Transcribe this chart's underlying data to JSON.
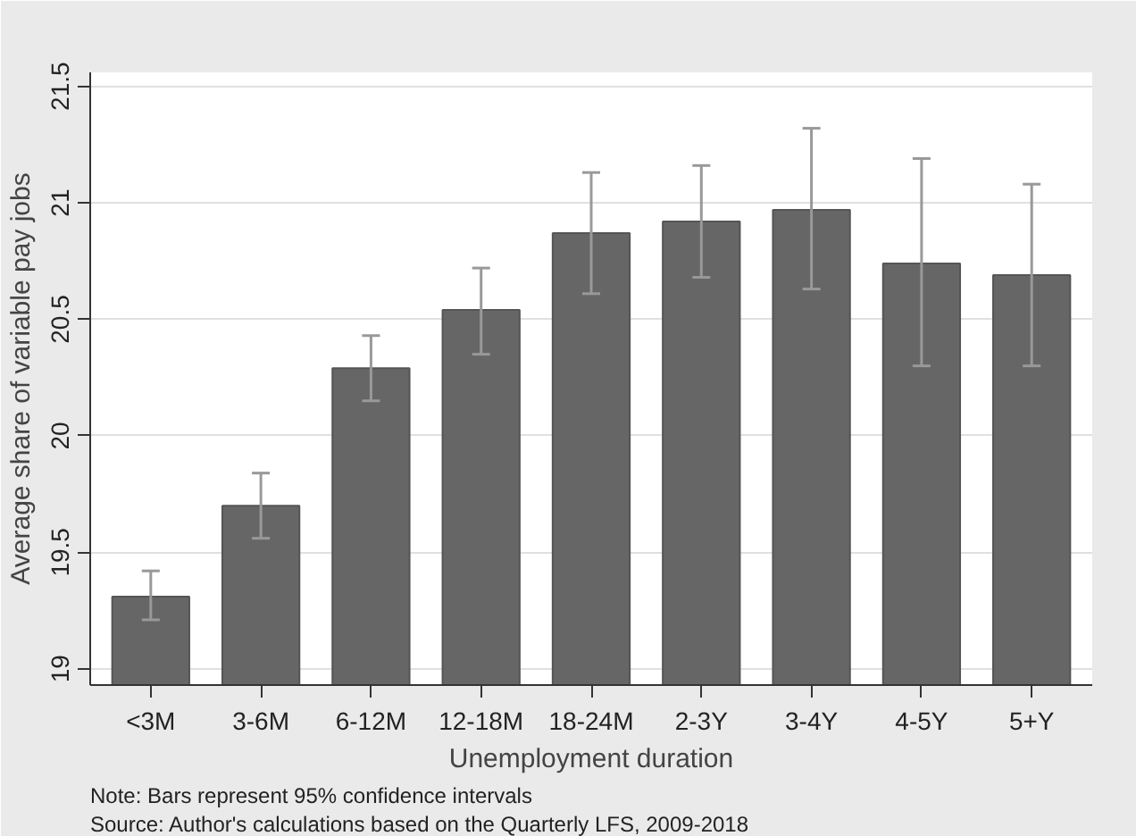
{
  "chart_data": {
    "type": "bar",
    "xlabel": "Unemployment duration",
    "ylabel": "Average share of variable pay jobs",
    "categories": [
      "<3M",
      "3-6M",
      "6-12M",
      "12-18M",
      "18-24M",
      "2-3Y",
      "3-4Y",
      "4-5Y",
      "5+Y"
    ],
    "values": [
      19.31,
      19.7,
      20.29,
      20.54,
      20.87,
      20.92,
      20.97,
      20.74,
      20.69
    ],
    "errors": [
      [
        19.21,
        19.42
      ],
      [
        19.56,
        19.84
      ],
      [
        20.15,
        20.43
      ],
      [
        20.35,
        20.72
      ],
      [
        20.61,
        21.13
      ],
      [
        20.68,
        21.16
      ],
      [
        20.63,
        21.32
      ],
      [
        20.3,
        21.19
      ],
      [
        20.3,
        21.08
      ]
    ],
    "color": "#666666",
    "ylim": [
      18.93,
      21.56
    ],
    "yticks": [
      19,
      19.5,
      20,
      20.5,
      21,
      21.5
    ],
    "grid": "y",
    "annotations": [
      "Note: Bars represent 95% confidence intervals",
      "Source: Author's calculations based on the Quarterly LFS, 2009-2018"
    ]
  }
}
